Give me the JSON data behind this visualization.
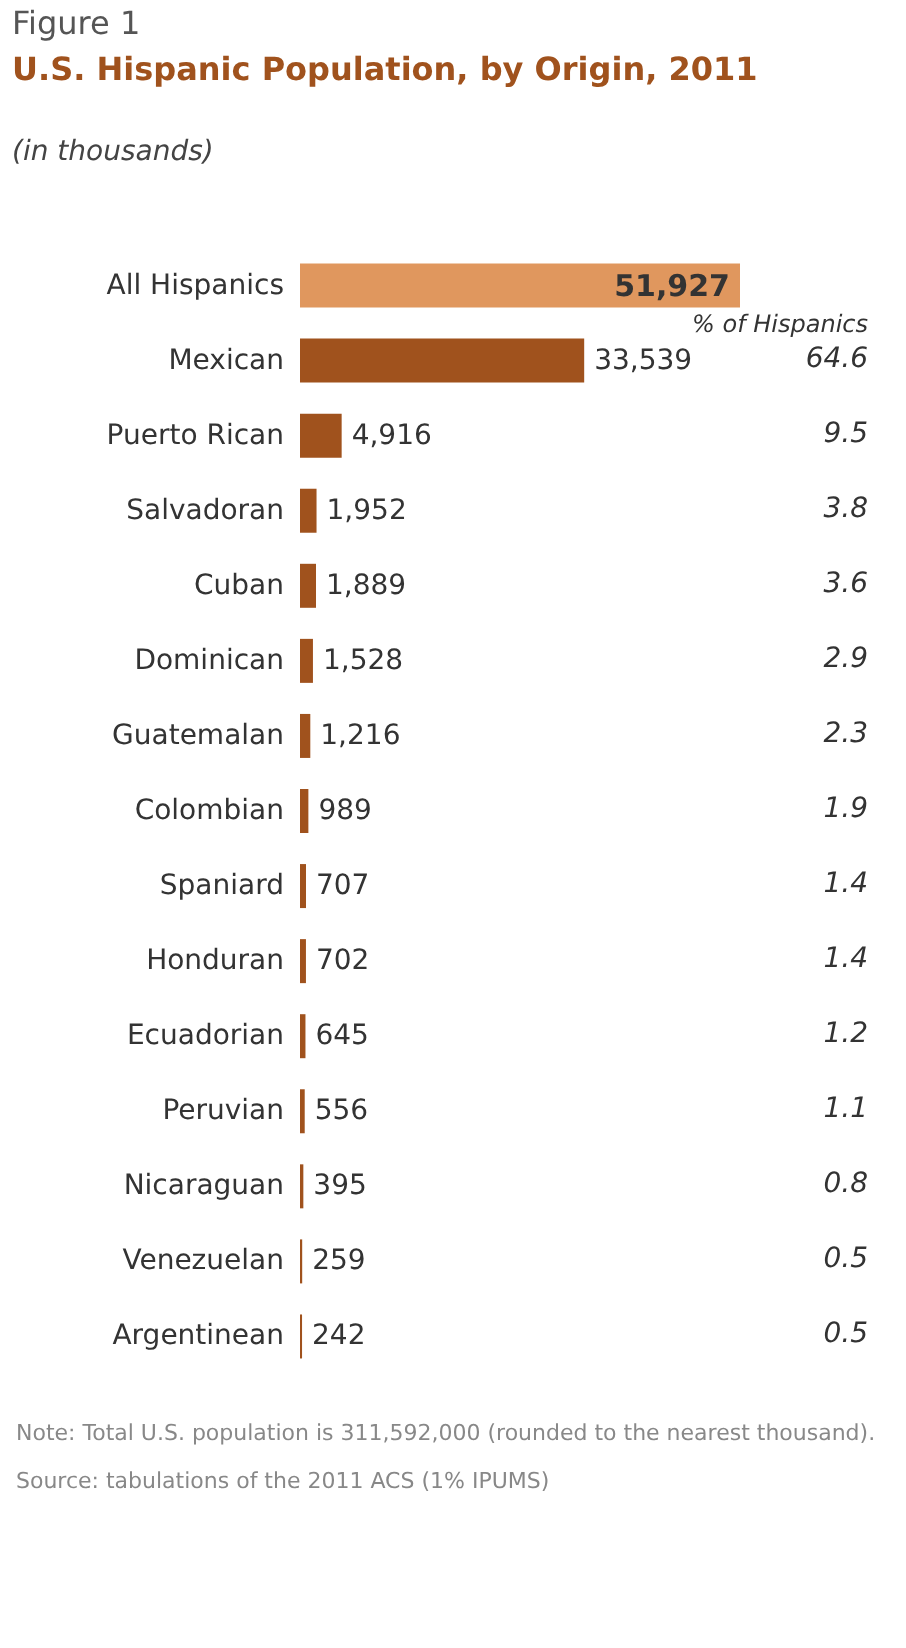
{
  "chart_data": {
    "type": "bar",
    "orientation": "horizontal",
    "title": "U.S. Hispanic Population, by Origin, 2011",
    "subtitle": "(in thousands)",
    "categories": [
      "All Hispanics",
      "Mexican",
      "Puerto Rican",
      "Salvadoran",
      "Cuban",
      "Dominican",
      "Guatemalan",
      "Colombian",
      "Spaniard",
      "Honduran",
      "Ecuadorian",
      "Peruvian",
      "Nicaraguan",
      "Venezuelan",
      "Argentinean"
    ],
    "values": [
      51927,
      33539,
      4916,
      1952,
      1889,
      1528,
      1216,
      989,
      707,
      702,
      645,
      556,
      395,
      259,
      242
    ],
    "colors": [
      "#e0975e",
      "#a0521d",
      "#a0521d",
      "#a0521d",
      "#a0521d",
      "#a0521d",
      "#a0521d",
      "#a0521d",
      "#a0521d",
      "#a0521d",
      "#a0521d",
      "#a0521d",
      "#a0521d",
      "#a0521d",
      "#a0521d"
    ],
    "value_labels": [
      "51,927",
      "33,539",
      "4,916",
      "1,952",
      "1,889",
      "1,528",
      "1,216",
      "989",
      "707",
      "702",
      "645",
      "556",
      "395",
      "259",
      "242"
    ],
    "tick_labels": "y",
    "annotations": [
      "Figure 1",
      "% of Hispanics",
      "Note: Total U.S. population is 311,592,000 (rounded to the nearest thousand).",
      "Source: tabulations of the 2011 ACS (1% IPUMS)",
      "64.6",
      "9.5",
      "3.8",
      "3.6",
      "2.9",
      "2.3",
      "1.9",
      "1.4",
      "1.4",
      "1.2",
      "1.1",
      "0.8",
      "0.5",
      "0.5"
    ]
  }
}
